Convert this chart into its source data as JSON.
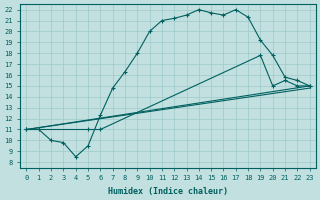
{
  "xlabel": "Humidex (Indice chaleur)",
  "xlim": [
    -0.5,
    23.5
  ],
  "ylim": [
    7.5,
    22.5
  ],
  "xticks": [
    0,
    1,
    2,
    3,
    4,
    5,
    6,
    7,
    8,
    9,
    10,
    11,
    12,
    13,
    14,
    15,
    16,
    17,
    18,
    19,
    20,
    21,
    22,
    23
  ],
  "yticks": [
    8,
    9,
    10,
    11,
    12,
    13,
    14,
    15,
    16,
    17,
    18,
    19,
    20,
    21,
    22
  ],
  "bg_color": "#c2e0e0",
  "line_color": "#006060",
  "grid_color": "#9dcaca",
  "line1_x": [
    0,
    1,
    2,
    3,
    4,
    5,
    6,
    7,
    8,
    9,
    10,
    11,
    12,
    13,
    14,
    15,
    16,
    17,
    18,
    19,
    20,
    21,
    22,
    23
  ],
  "line1_y": [
    11,
    11,
    10,
    9.8,
    8.5,
    9.5,
    12.3,
    14.8,
    16.3,
    18.0,
    20.0,
    21.0,
    21.2,
    21.5,
    22.0,
    21.7,
    21.5,
    22.0,
    21.3,
    19.2,
    17.8,
    15.8,
    15.5,
    15.0
  ],
  "line2_x": [
    0,
    5,
    6,
    19,
    20,
    21,
    22,
    23
  ],
  "line2_y": [
    11,
    11,
    11,
    17.8,
    15.0,
    15.5,
    15.0,
    15.0
  ],
  "line3_x": [
    0,
    23
  ],
  "line3_y": [
    11,
    15.0
  ],
  "line4_x": [
    0,
    23
  ],
  "line4_y": [
    11,
    14.8
  ],
  "font_size_ticks": 5,
  "font_size_label": 6
}
